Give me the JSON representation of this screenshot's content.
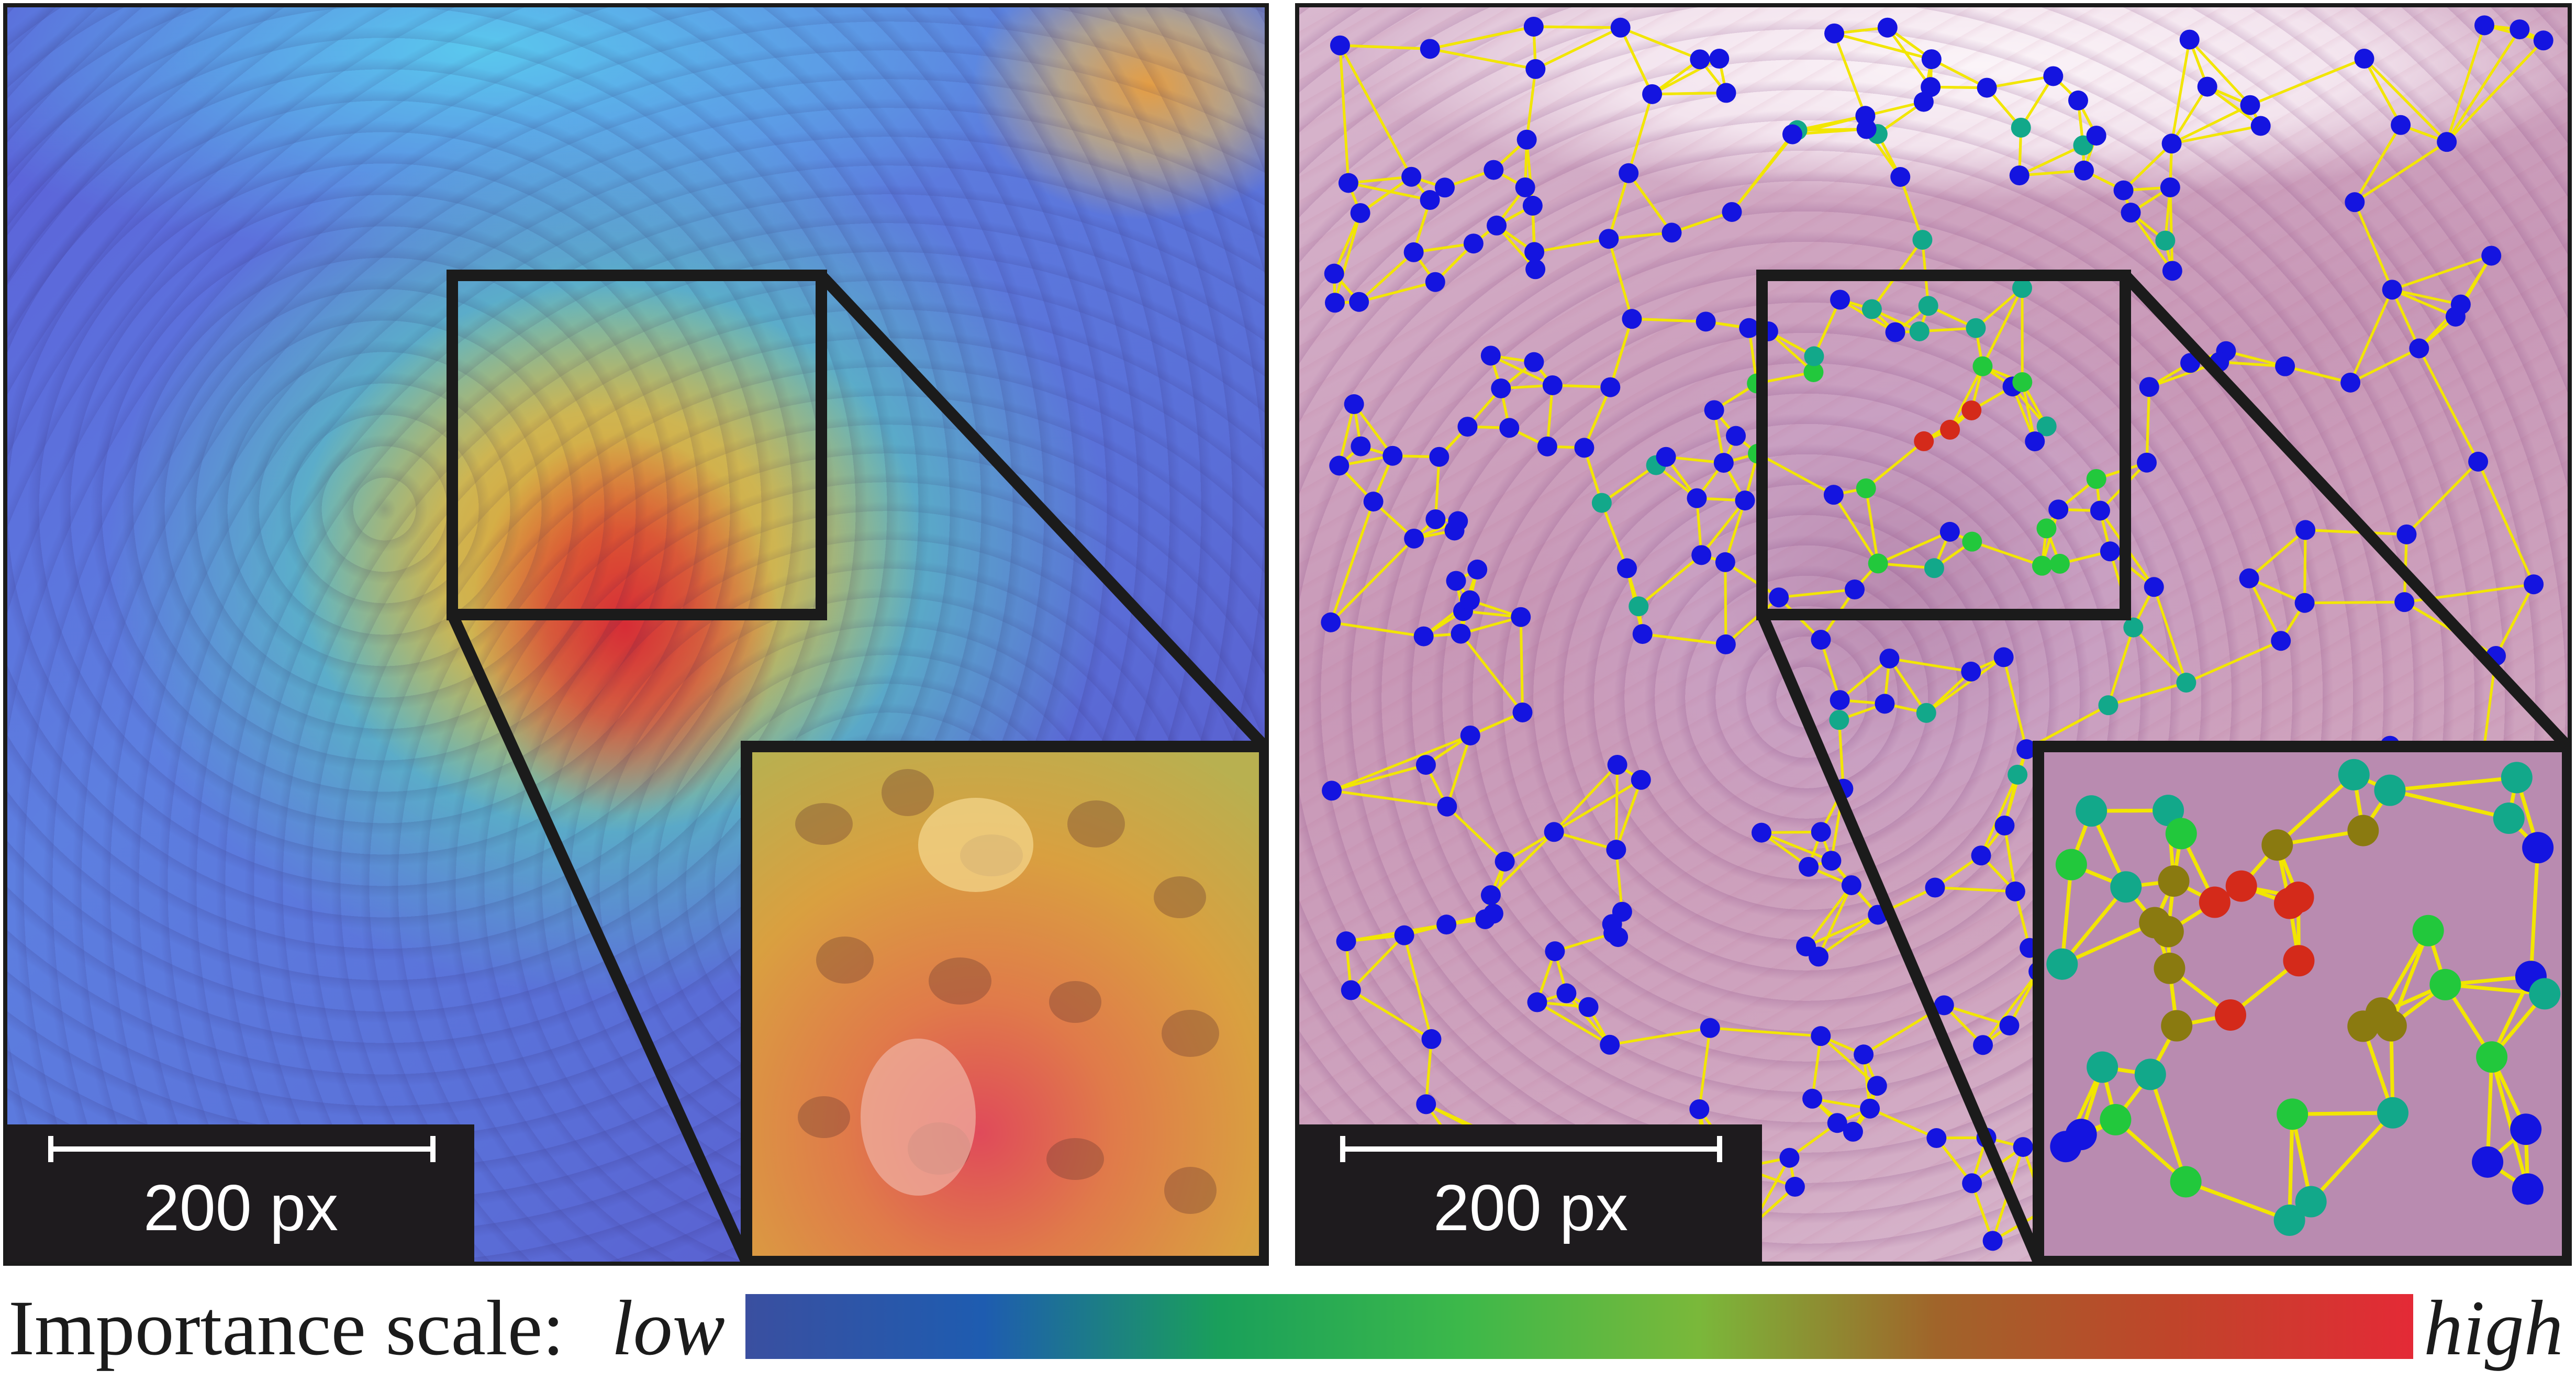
{
  "panels": {
    "left": {
      "scale_label": "200 px"
    },
    "right": {
      "scale_label": "200 px"
    }
  },
  "legend": {
    "label": "Importance scale:",
    "low": "low",
    "high": "high",
    "gradient": [
      "#3a4fa0",
      "#1e5cb0",
      "#1aa05a",
      "#3cb84a",
      "#7ab83a",
      "#a0642a",
      "#c0442a",
      "#e42a36"
    ]
  },
  "colors": {
    "frame": "#1b1b1b",
    "edge": "#f2e600",
    "node_low": "#1414e0",
    "node_mid": "#12a88a",
    "node_green": "#22c83c",
    "node_olive": "#8a7a10",
    "node_high": "#d42a1a"
  }
}
